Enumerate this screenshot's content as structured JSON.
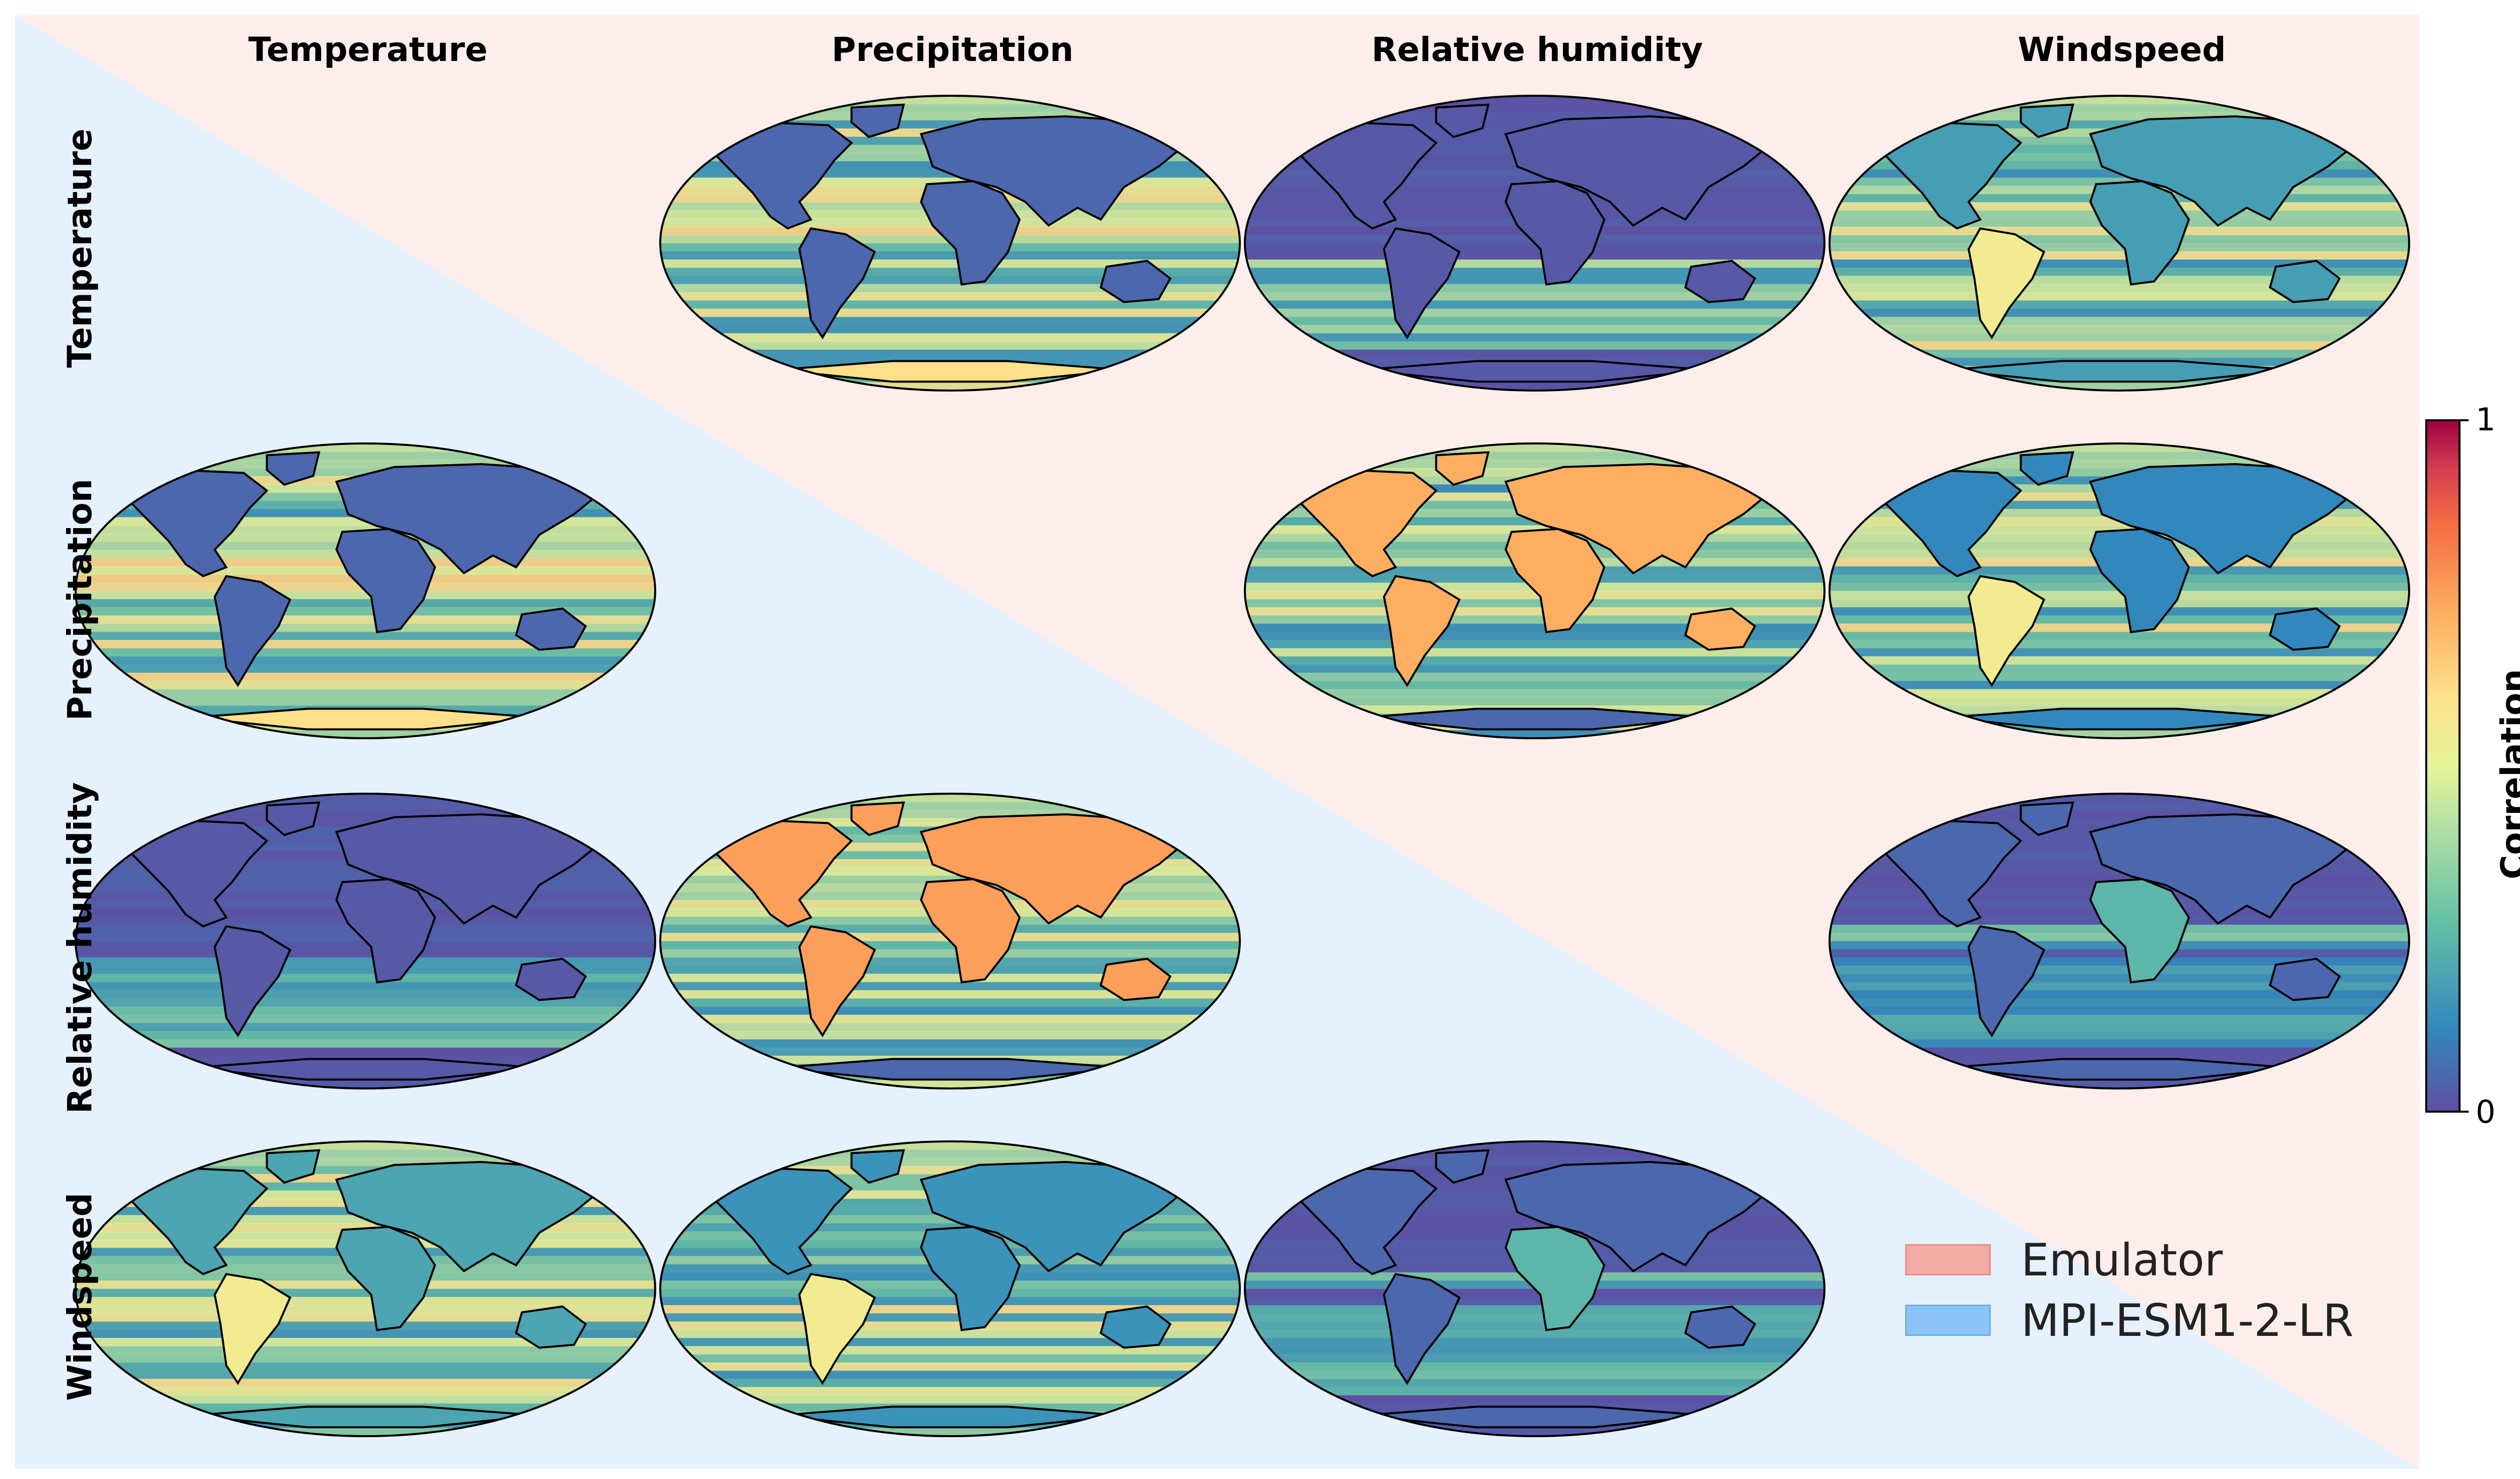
{
  "variables": [
    "Temperature",
    "Precipitation",
    "Relative humidity",
    "Windspeed"
  ],
  "legend": [
    {
      "label": "Emulator",
      "color": "#f2aba4"
    },
    {
      "label": "MPI-ESM1-2-LR",
      "color": "#8cc4f7"
    }
  ],
  "background_colors": {
    "emulator_region": "#fdeeec",
    "mpi_region": "#e6f1fe"
  },
  "colorbar": {
    "title": "Correlation",
    "min_label": "0",
    "max_label": "1",
    "colormap": "Spectral_r"
  },
  "chart_data": {
    "type": "heatmap",
    "description_type": "grid of correlation maps (pairwise variable correlations, world maps)",
    "rows": [
      "Temperature",
      "Precipitation",
      "Relative humidity",
      "Windspeed"
    ],
    "columns": [
      "Temperature",
      "Precipitation",
      "Relative humidity",
      "Windspeed"
    ],
    "upper_triangle_source": "Emulator",
    "lower_triangle_source": "MPI-ESM1-2-LR",
    "value_range": [
      0,
      1
    ],
    "panels": [
      {
        "row": "Temperature",
        "col": "Precipitation",
        "source": "Emulator",
        "land_mean": 0.05,
        "ocean_mean": 0.4,
        "style": "temp"
      },
      {
        "row": "Temperature",
        "col": "Relative humidity",
        "source": "Emulator",
        "land_mean": 0.02,
        "ocean_mean": 0.22,
        "style": "rh"
      },
      {
        "row": "Temperature",
        "col": "Windspeed",
        "source": "Emulator",
        "land_mean": 0.18,
        "ocean_mean": 0.38,
        "style": "wind"
      },
      {
        "row": "Precipitation",
        "col": "Relative humidity",
        "source": "Emulator",
        "land_mean": 0.72,
        "ocean_mean": 0.35,
        "style": "prh"
      },
      {
        "row": "Precipitation",
        "col": "Windspeed",
        "source": "Emulator",
        "land_mean": 0.12,
        "ocean_mean": 0.38,
        "style": "wind"
      },
      {
        "row": "Relative humidity",
        "col": "Windspeed",
        "source": "Emulator",
        "land_mean": 0.05,
        "ocean_mean": 0.15,
        "style": "rhw"
      },
      {
        "row": "Precipitation",
        "col": "Temperature",
        "source": "MPI-ESM1-2-LR",
        "land_mean": 0.05,
        "ocean_mean": 0.4,
        "style": "temp"
      },
      {
        "row": "Relative humidity",
        "col": "Temperature",
        "source": "MPI-ESM1-2-LR",
        "land_mean": 0.02,
        "ocean_mean": 0.22,
        "style": "rh"
      },
      {
        "row": "Relative humidity",
        "col": "Precipitation",
        "source": "MPI-ESM1-2-LR",
        "land_mean": 0.75,
        "ocean_mean": 0.35,
        "style": "prh"
      },
      {
        "row": "Windspeed",
        "col": "Temperature",
        "source": "MPI-ESM1-2-LR",
        "land_mean": 0.2,
        "ocean_mean": 0.38,
        "style": "wind"
      },
      {
        "row": "Windspeed",
        "col": "Precipitation",
        "source": "MPI-ESM1-2-LR",
        "land_mean": 0.15,
        "ocean_mean": 0.38,
        "style": "wind"
      },
      {
        "row": "Windspeed",
        "col": "Relative humidity",
        "source": "MPI-ESM1-2-LR",
        "land_mean": 0.05,
        "ocean_mean": 0.15,
        "style": "rhw"
      }
    ]
  }
}
